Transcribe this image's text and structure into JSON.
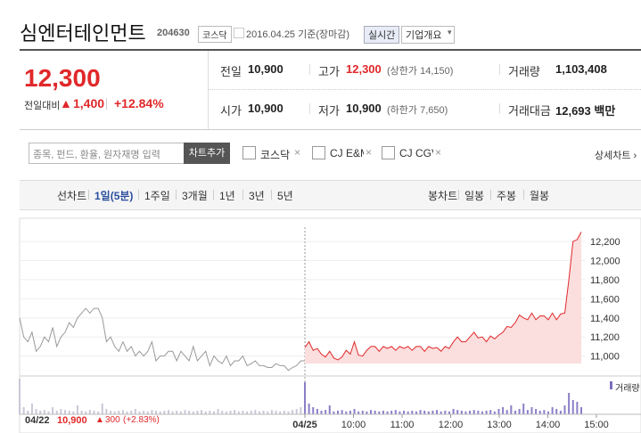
{
  "header": {
    "name": "심엔터테인먼트",
    "code": "204630",
    "market": "코스닥",
    "date": "2016.04.25 기준(장마감)",
    "realtime": "실시간",
    "company": "기업개요"
  },
  "price": {
    "current": "12,300",
    "change_label": "전일대비",
    "change": "1,400",
    "rate": "+12.84%"
  },
  "stats": [
    [
      {
        "label": "전일",
        "value": "10,900"
      },
      {
        "label": "고가",
        "value": "12,300",
        "note": "(상한가 14,150)"
      },
      {
        "label": "거래량",
        "value": "1,103,408"
      }
    ],
    [
      {
        "label": "시가",
        "value": "10,900"
      },
      {
        "label": "저가",
        "value": "10,900",
        "note": "(하한가 7,650)"
      },
      {
        "label": "거래대금",
        "value": "12,693 백만"
      }
    ]
  ],
  "controls": {
    "search_placeholder": "종목, 펀드, 환율, 원자재명 입력",
    "add_button": "차트추가",
    "compare": [
      "코스닥",
      "CJ E&M",
      "CJ CGV"
    ],
    "detail": "상세차트"
  },
  "tabs": {
    "line_label": "선차트",
    "periods": [
      "1일(5분)",
      "1주일",
      "3개월",
      "1년",
      "3년",
      "5년"
    ],
    "candle_label": "봉차트",
    "candles": [
      "일봉",
      "주봉",
      "월봉"
    ]
  },
  "chart_data": {
    "type": "line",
    "x_labels": [
      "04/25",
      "10:00",
      "11:00",
      "12:00",
      "13:00",
      "14:00",
      "15:00"
    ],
    "ylim": [
      10810,
      12350
    ],
    "yticks": [
      {
        "value": 11000,
        "label": "11,000"
      },
      {
        "value": 11200,
        "label": "11,200"
      },
      {
        "value": 11400,
        "label": "11,400"
      },
      {
        "value": 11600,
        "label": "11,600"
      },
      {
        "value": 11800,
        "label": "11,800"
      },
      {
        "value": 12000,
        "label": "12,000"
      },
      {
        "value": 12200,
        "label": "12,200"
      }
    ],
    "grid": true,
    "series": [
      {
        "color": "#999999",
        "values": [
          11400,
          11200,
          11150,
          11250,
          11050,
          11100,
          11200,
          11150,
          11300,
          11100,
          11200,
          11250,
          11350,
          11300,
          11400,
          11450,
          11500,
          11450,
          11500,
          11500,
          11400,
          11150,
          11200,
          11100,
          11050,
          11150,
          11050,
          11100,
          11000,
          11050,
          11000,
          11050,
          11150,
          10950,
          11000,
          11000,
          11050,
          11050,
          10950,
          11050,
          11000,
          10950,
          11100,
          10950,
          11000,
          11050,
          10900,
          11000,
          10950,
          10920,
          11000,
          10900,
          10950,
          10950,
          11000,
          10900,
          10920,
          10950,
          10900,
          10900,
          10880,
          10880,
          10920,
          10900,
          10900,
          10850,
          10880,
          10900,
          10950,
          10950
        ]
      },
      {
        "color": "#e0282a",
        "fill": "#fbdede",
        "values": [
          11090,
          11150,
          11060,
          11080,
          11020,
          10990,
          11050,
          10980,
          10960,
          10990,
          11060,
          11020,
          11150,
          11010,
          11000,
          11060,
          11100,
          11100,
          11050,
          11100,
          11080,
          11100,
          11060,
          11100,
          11080,
          11100,
          11060,
          11100,
          11100,
          11050,
          11100,
          11080,
          11090,
          11050,
          11100,
          11080,
          11150,
          11200,
          11150,
          11150,
          11200,
          11250,
          11190,
          11200,
          11150,
          11210,
          11180,
          11220,
          11250,
          11310,
          11300,
          11350,
          11430,
          11400,
          11380,
          11450,
          11380,
          11420,
          11420,
          11380,
          11450,
          11380,
          11440,
          11450,
          11800,
          12200,
          12220,
          12300
        ]
      }
    ],
    "volume": {
      "name": "거래량",
      "color": "#8a7fc8",
      "series": [
        [
          100,
          20,
          10,
          30,
          15,
          10,
          12,
          8,
          20,
          10,
          15,
          12,
          10,
          8,
          25,
          10,
          8,
          12,
          10,
          8,
          30,
          15,
          10,
          8,
          10,
          12,
          8,
          10,
          15,
          8,
          10,
          8,
          12,
          10,
          8,
          10,
          12,
          8,
          10,
          8,
          12,
          10,
          8,
          10,
          12,
          8,
          10,
          8,
          15,
          10,
          8,
          10,
          12,
          8,
          10,
          8,
          10,
          12,
          8,
          10,
          8,
          12,
          10,
          8,
          10,
          8,
          12,
          15,
          20,
          30
        ],
        [
          90,
          30,
          20,
          15,
          10,
          12,
          25,
          8,
          10,
          12,
          8,
          10,
          15,
          8,
          10,
          8,
          12,
          10,
          8,
          10,
          8,
          10,
          12,
          8,
          10,
          8,
          10,
          8,
          12,
          10,
          8,
          10,
          12,
          8,
          10,
          8,
          15,
          12,
          10,
          8,
          10,
          12,
          10,
          8,
          10,
          12,
          8,
          15,
          20,
          12,
          25,
          10,
          15,
          30,
          12,
          20,
          15,
          10,
          12,
          8,
          20,
          15,
          10,
          25,
          60,
          40,
          35,
          20
        ]
      ]
    },
    "summary": {
      "date": "04/22",
      "close": "10,900",
      "change": "300",
      "rate": "(+2.83%)"
    }
  }
}
